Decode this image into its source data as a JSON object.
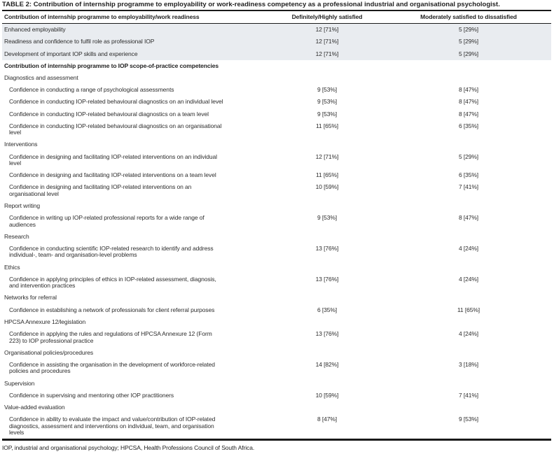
{
  "page": {
    "title_label": "TABLE 2:",
    "title_text": "Contribution of internship programme to employability or work-readiness competency as a professional industrial and organisational psychologist.",
    "footnote": "IOP, industrial and organisational psychology; HPCSA, Health Professions Council of South Africa."
  },
  "colors": {
    "shaded_row_background": "#e9ecf0",
    "rule_black": "#1a1a1a",
    "text": "#2d2d2d"
  },
  "table": {
    "columns": [
      "Contribution of internship programme to employability/work readiness",
      "Definitely/Highly satisfied",
      "Moderately satisfied to dissatisfied"
    ],
    "rows": [
      {
        "kind": "data",
        "shaded": true,
        "indent": false,
        "label": "Enhanced employability",
        "definitely": "12 [71%]",
        "moderately": "5 [29%]"
      },
      {
        "kind": "data",
        "shaded": true,
        "indent": false,
        "label": "Readiness and confidence to fulfil role as professional IOP",
        "definitely": "12 [71%]",
        "moderately": "5 [29%]"
      },
      {
        "kind": "data",
        "shaded": true,
        "indent": false,
        "label": "Development of important IOP skills and experience",
        "definitely": "12 [71%]",
        "moderately": "5 [29%]"
      },
      {
        "kind": "section",
        "bold": true,
        "label": "Contribution of internship programme to IOP scope-of-practice competencies"
      },
      {
        "kind": "section",
        "bold": false,
        "label": "Diagnostics and assessment"
      },
      {
        "kind": "data",
        "indent": true,
        "label": "Confidence in conducting a range of psychological assessments",
        "definitely": "9 [53%]",
        "moderately": "8 [47%]"
      },
      {
        "kind": "data",
        "indent": true,
        "label": "Confidence in conducting IOP-related behavioural diagnostics on an individual level",
        "definitely": "9 [53%]",
        "moderately": "8 [47%]"
      },
      {
        "kind": "data",
        "indent": true,
        "label": "Confidence in conducting IOP-related behavioural diagnostics on a team level",
        "definitely": "9 [53%]",
        "moderately": "8 [47%]"
      },
      {
        "kind": "data",
        "indent": true,
        "label": "Confidence in conducting IOP-related behavioural diagnostics on an organisational\nlevel",
        "definitely": "11 [65%]",
        "moderately": "6 [35%]"
      },
      {
        "kind": "section",
        "bold": false,
        "label": "Interventions"
      },
      {
        "kind": "data",
        "indent": true,
        "label": "Confidence in designing and facilitating IOP-related interventions on an individual\nlevel",
        "definitely": "12 [71%]",
        "moderately": "5 [29%]"
      },
      {
        "kind": "data",
        "indent": true,
        "label": "Confidence in designing and facilitating IOP-related interventions on a team level",
        "definitely": "11 [65%]",
        "moderately": "6 [35%]"
      },
      {
        "kind": "data",
        "indent": true,
        "label": "Confidence in designing and facilitating IOP-related interventions on an\norganisational level",
        "definitely": "10 [59%]",
        "moderately": "7 [41%]"
      },
      {
        "kind": "section",
        "bold": false,
        "label": "Report writing"
      },
      {
        "kind": "data",
        "indent": true,
        "label": "Confidence in writing up IOP-related professional reports for a wide range of\naudiences",
        "definitely": "9 [53%]",
        "moderately": "8 [47%]"
      },
      {
        "kind": "section",
        "bold": false,
        "label": "Research"
      },
      {
        "kind": "data",
        "indent": true,
        "label": "Confidence in conducting scientific IOP-related research to identify and address\nindividual-, team- and organisation-level problems",
        "definitely": "13 [76%]",
        "moderately": "4 [24%]"
      },
      {
        "kind": "section",
        "bold": false,
        "label": "Ethics"
      },
      {
        "kind": "data",
        "indent": true,
        "label": "Confidence in applying principles of ethics in IOP-related assessment, diagnosis,\nand intervention practices",
        "definitely": "13 [76%]",
        "moderately": "4 [24%]"
      },
      {
        "kind": "section",
        "bold": false,
        "label": "Networks for referral"
      },
      {
        "kind": "data",
        "indent": true,
        "label": "Confidence in establishing a network of professionals for client referral purposes",
        "definitely": "6 [35%]",
        "moderately": "11 [65%]"
      },
      {
        "kind": "section",
        "bold": false,
        "label": "HPCSA Annexure 12/legislation"
      },
      {
        "kind": "data",
        "indent": true,
        "label": "Confidence in applying the rules and regulations of HPCSA Annexure 12 (Form\n223) to IOP professional practice",
        "definitely": "13 [76%]",
        "moderately": "4 [24%]"
      },
      {
        "kind": "section",
        "bold": false,
        "label": "Organisational policies/procedures"
      },
      {
        "kind": "data",
        "indent": true,
        "label": "Confidence in assisting the organisation in the development of workforce-related\npolicies and procedures",
        "definitely": "14 [82%]",
        "moderately": "3 [18%]"
      },
      {
        "kind": "section",
        "bold": false,
        "label": "Supervision"
      },
      {
        "kind": "data",
        "indent": true,
        "label": "Confidence in supervising and mentoring other IOP practitioners",
        "definitely": "10 [59%]",
        "moderately": "7 [41%]"
      },
      {
        "kind": "section",
        "bold": false,
        "label": "Value-added evaluation"
      },
      {
        "kind": "data",
        "indent": true,
        "label": "Confidence in ability to evaluate the impact and value/contribution of IOP-related\ndiagnostics, assessment and interventions on individual, team, and organisation\nlevels",
        "definitely": "8 [47%]",
        "moderately": "9 [53%]"
      }
    ]
  }
}
